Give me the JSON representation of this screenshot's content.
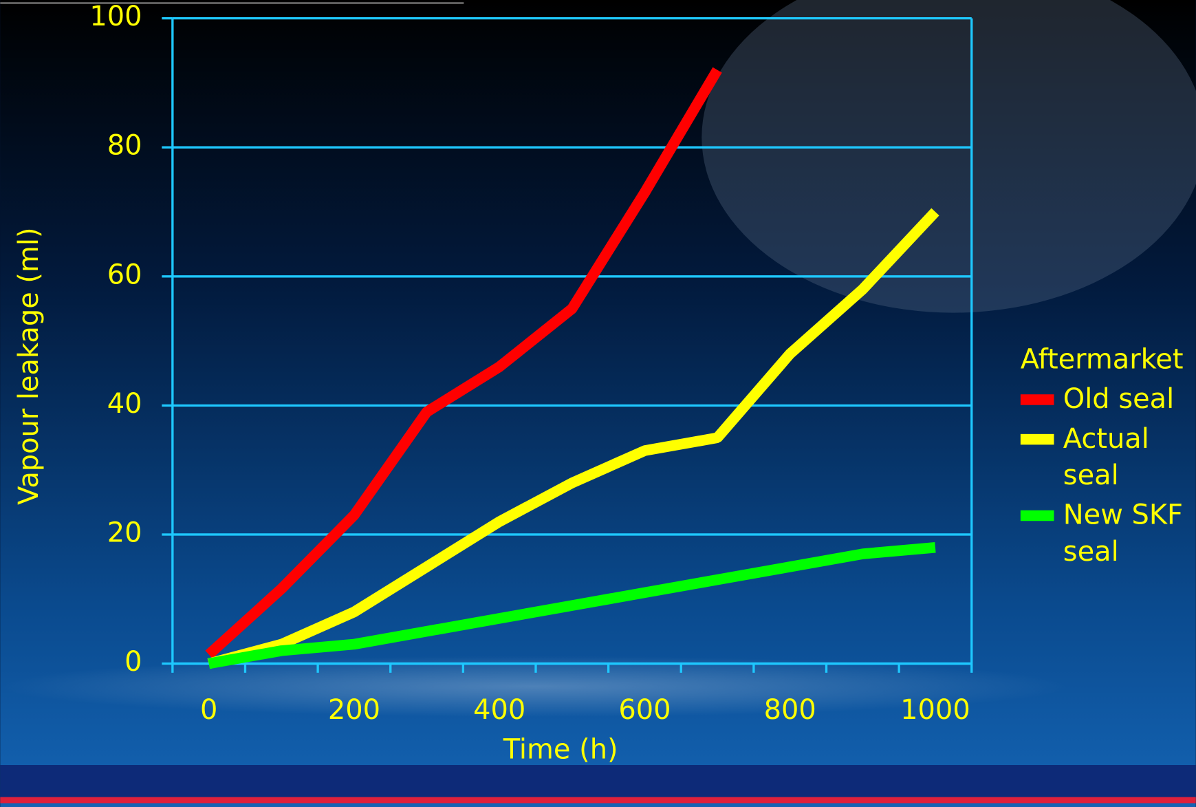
{
  "chart_data": {
    "type": "line",
    "y_label": "Vapour leakage (ml)",
    "x_label": "Time (h)",
    "legend_title": "Aftermarket",
    "categories": [
      "0",
      null,
      "200",
      null,
      "400",
      null,
      "600",
      null,
      "800",
      null,
      "1000"
    ],
    "series": [
      {
        "name": "Old seal",
        "color": "#ff0000",
        "values": [
          1.4,
          11.6,
          23,
          39,
          46,
          55,
          73,
          92,
          null,
          null,
          null
        ]
      },
      {
        "name": "Actual seal",
        "color": "#ffff00",
        "values": [
          0,
          3,
          8,
          15,
          22,
          28,
          33,
          35,
          48,
          58,
          70
        ]
      },
      {
        "name": "New SKF seal",
        "color": "#00ff00",
        "values": [
          0,
          2,
          3,
          5,
          7,
          9,
          11,
          13,
          15,
          17,
          18
        ]
      }
    ],
    "ylim": [
      0,
      100
    ],
    "yticks": [
      0,
      20,
      40,
      60,
      80,
      100
    ],
    "grid": true,
    "legend": "right"
  }
}
